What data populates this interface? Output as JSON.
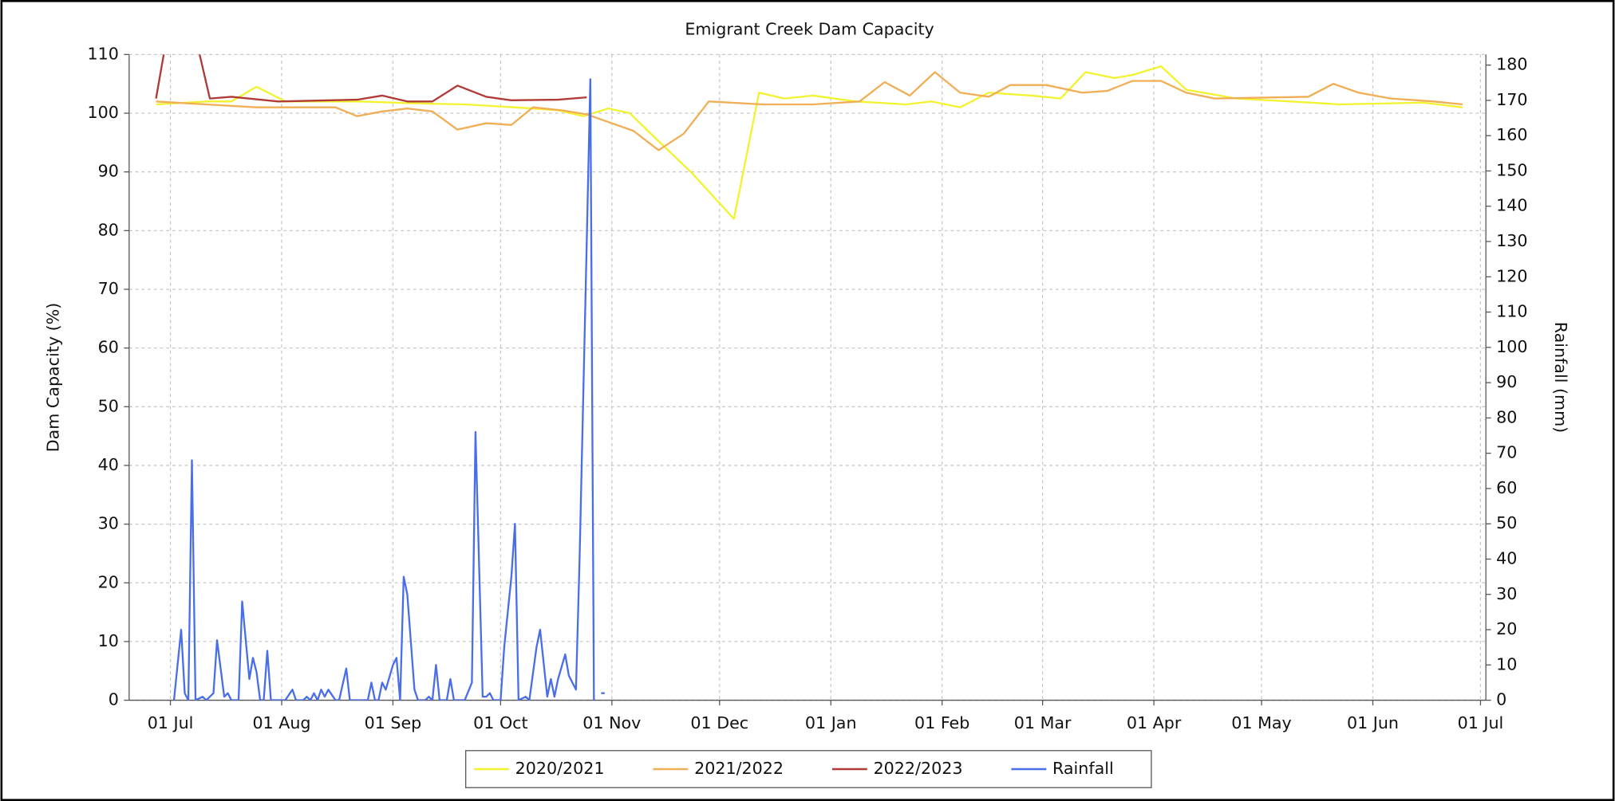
{
  "chart_data": {
    "type": "line",
    "title": "Emigrant Creek Dam Capacity",
    "ylabel": "Dam Capacity (%)",
    "y2label": "Rainfall (mm)",
    "xlim": [
      -11.5,
      366.5
    ],
    "xticks": [
      {
        "value": 0,
        "label": "01 Jul"
      },
      {
        "value": 31,
        "label": "01 Aug"
      },
      {
        "value": 62,
        "label": "01 Sep"
      },
      {
        "value": 92,
        "label": "01 Oct"
      },
      {
        "value": 123,
        "label": "01 Nov"
      },
      {
        "value": 153,
        "label": "01 Dec"
      },
      {
        "value": 184,
        "label": "01 Jan"
      },
      {
        "value": 215,
        "label": "01 Feb"
      },
      {
        "value": 243,
        "label": "01 Mar"
      },
      {
        "value": 274,
        "label": "01 Apr"
      },
      {
        "value": 304,
        "label": "01 May"
      },
      {
        "value": 335,
        "label": "01 Jun"
      },
      {
        "value": 365,
        "label": "01 Jul"
      }
    ],
    "ylim": [
      0,
      110
    ],
    "yticks": [
      0,
      10,
      20,
      30,
      40,
      50,
      60,
      70,
      80,
      90,
      100,
      110
    ],
    "y2lim": [
      0,
      183
    ],
    "y2ticks": [
      0,
      10,
      20,
      30,
      40,
      50,
      60,
      70,
      80,
      90,
      100,
      110,
      120,
      130,
      140,
      150,
      160,
      170,
      180
    ],
    "grid": true,
    "legend": "bottom",
    "series": [
      {
        "name": "2020/2021",
        "color": "#f2f230",
        "x": [
          -4,
          10,
          17,
          24,
          32,
          53,
          67,
          82,
          96,
          108,
          115,
          122,
          128,
          133,
          145,
          157,
          164,
          171,
          179,
          191,
          205,
          212,
          220,
          228,
          240,
          248,
          255,
          263,
          268,
          276,
          283,
          297,
          312,
          326,
          349,
          360
        ],
        "values": [
          101.5,
          102,
          102,
          104.5,
          102,
          102,
          101.7,
          101.5,
          101,
          100.5,
          99.5,
          100.8,
          100,
          97,
          90,
          82,
          103.5,
          102.5,
          103,
          102,
          101.5,
          102,
          101,
          103.5,
          103,
          102.5,
          107,
          106,
          106.5,
          108,
          104,
          102.5,
          102,
          101.5,
          101.8,
          101
        ]
      },
      {
        "name": "2021/2022",
        "color": "#f0ae55",
        "x": [
          -4,
          10,
          24,
          39,
          46,
          52,
          59,
          66,
          73,
          80,
          88,
          95,
          101,
          109,
          116,
          122,
          129,
          136,
          143,
          150,
          165,
          179,
          192,
          199,
          206,
          213,
          220,
          228,
          234,
          244,
          254,
          261,
          268,
          276,
          283,
          291,
          317,
          324,
          331,
          340,
          352,
          360
        ],
        "values": [
          102,
          101.5,
          101,
          101,
          101,
          99.5,
          100.3,
          100.8,
          100.3,
          97.2,
          98.3,
          98,
          101,
          100.5,
          99.8,
          98.5,
          97,
          93.7,
          96.5,
          102,
          101.5,
          101.5,
          102,
          105.3,
          103,
          107,
          103.5,
          102.8,
          104.8,
          104.8,
          103.5,
          103.8,
          105.5,
          105.5,
          103.5,
          102.5,
          102.8,
          105,
          103.5,
          102.5,
          102,
          101.5
        ]
      },
      {
        "name": "2022/2023",
        "color": "#b03a35",
        "x": [
          -4,
          -1,
          7,
          11,
          17,
          30,
          52,
          59,
          66,
          73,
          80,
          88,
          95,
          108,
          116
        ],
        "values": [
          102.5,
          113,
          113,
          102.5,
          102.8,
          102,
          102.3,
          103,
          102,
          102,
          104.7,
          102.8,
          102.2,
          102.3,
          102.7
        ]
      },
      {
        "name": "Rainfall",
        "color": "#4a6ee8",
        "axis": "y2",
        "x": [
          1,
          3,
          4,
          5,
          6,
          7,
          9,
          10,
          12,
          13,
          15,
          16,
          17,
          19,
          20,
          22,
          23,
          24,
          25,
          26,
          27,
          28,
          32,
          34,
          35,
          37,
          38,
          39,
          40,
          41,
          42,
          43,
          44,
          46,
          47,
          49,
          50,
          55,
          56,
          57,
          58,
          59,
          60,
          62,
          63,
          64,
          65,
          66,
          68,
          69,
          71,
          72,
          73,
          74,
          75,
          77,
          78,
          79,
          82,
          84,
          85,
          87,
          88,
          89,
          90,
          92,
          93,
          95,
          96,
          97,
          99,
          100,
          102,
          103,
          105,
          106,
          107,
          108,
          110,
          111,
          113,
          114,
          116,
          117,
          118,
          119,
          120,
          121
        ],
        "values": [
          0,
          20,
          2,
          0,
          68,
          0,
          1,
          0,
          2,
          17,
          1,
          2,
          0,
          0,
          28,
          6,
          12,
          8,
          0,
          0,
          14,
          0,
          0,
          3,
          0,
          0,
          1,
          0,
          2,
          0,
          3,
          1,
          3,
          0,
          0,
          9,
          0,
          0,
          5,
          0,
          0,
          5,
          3,
          10,
          12,
          0,
          35,
          30,
          3,
          0,
          0,
          1,
          0,
          10,
          0,
          0,
          6,
          0,
          0,
          5,
          76,
          1,
          1,
          2,
          0,
          0,
          15,
          35,
          50,
          0,
          1,
          0,
          15,
          20,
          1,
          6,
          1,
          6,
          13,
          7,
          3,
          40,
          130,
          176,
          0,
          null,
          2,
          2
        ]
      }
    ]
  }
}
